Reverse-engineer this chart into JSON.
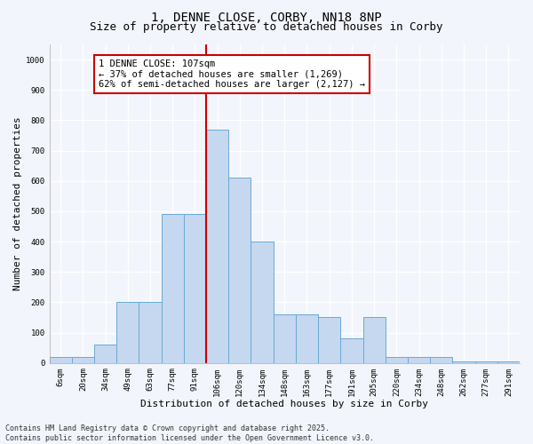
{
  "title_line1": "1, DENNE CLOSE, CORBY, NN18 8NP",
  "title_line2": "Size of property relative to detached houses in Corby",
  "xlabel": "Distribution of detached houses by size in Corby",
  "ylabel": "Number of detached properties",
  "bar_labels": [
    "6sqm",
    "20sqm",
    "34sqm",
    "49sqm",
    "63sqm",
    "77sqm",
    "91sqm",
    "106sqm",
    "120sqm",
    "134sqm",
    "148sqm",
    "163sqm",
    "177sqm",
    "191sqm",
    "205sqm",
    "220sqm",
    "234sqm",
    "248sqm",
    "262sqm",
    "277sqm",
    "291sqm"
  ],
  "bar_values": [
    20,
    20,
    60,
    200,
    200,
    490,
    490,
    770,
    610,
    400,
    160,
    160,
    150,
    80,
    150,
    20,
    20,
    20,
    5,
    5,
    5
  ],
  "bar_color": "#c5d8f0",
  "bar_edge_color": "#6aaad4",
  "annotation_text": "1 DENNE CLOSE: 107sqm\n← 37% of detached houses are smaller (1,269)\n62% of semi-detached houses are larger (2,127) →",
  "annotation_box_color": "#ffffff",
  "annotation_box_edge_color": "#cc0000",
  "vline_color": "#cc0000",
  "ylim": [
    0,
    1050
  ],
  "yticks": [
    0,
    100,
    200,
    300,
    400,
    500,
    600,
    700,
    800,
    900,
    1000
  ],
  "footnote": "Contains HM Land Registry data © Crown copyright and database right 2025.\nContains public sector information licensed under the Open Government Licence v3.0.",
  "bg_color": "#f2f5fb",
  "plot_bg_color": "#f2f5fb",
  "grid_color": "#ffffff",
  "title_fontsize": 10,
  "subtitle_fontsize": 9,
  "axis_label_fontsize": 8,
  "tick_fontsize": 6.5,
  "footnote_fontsize": 6,
  "annotation_fontsize": 7.5,
  "property_bin_idx": 7
}
